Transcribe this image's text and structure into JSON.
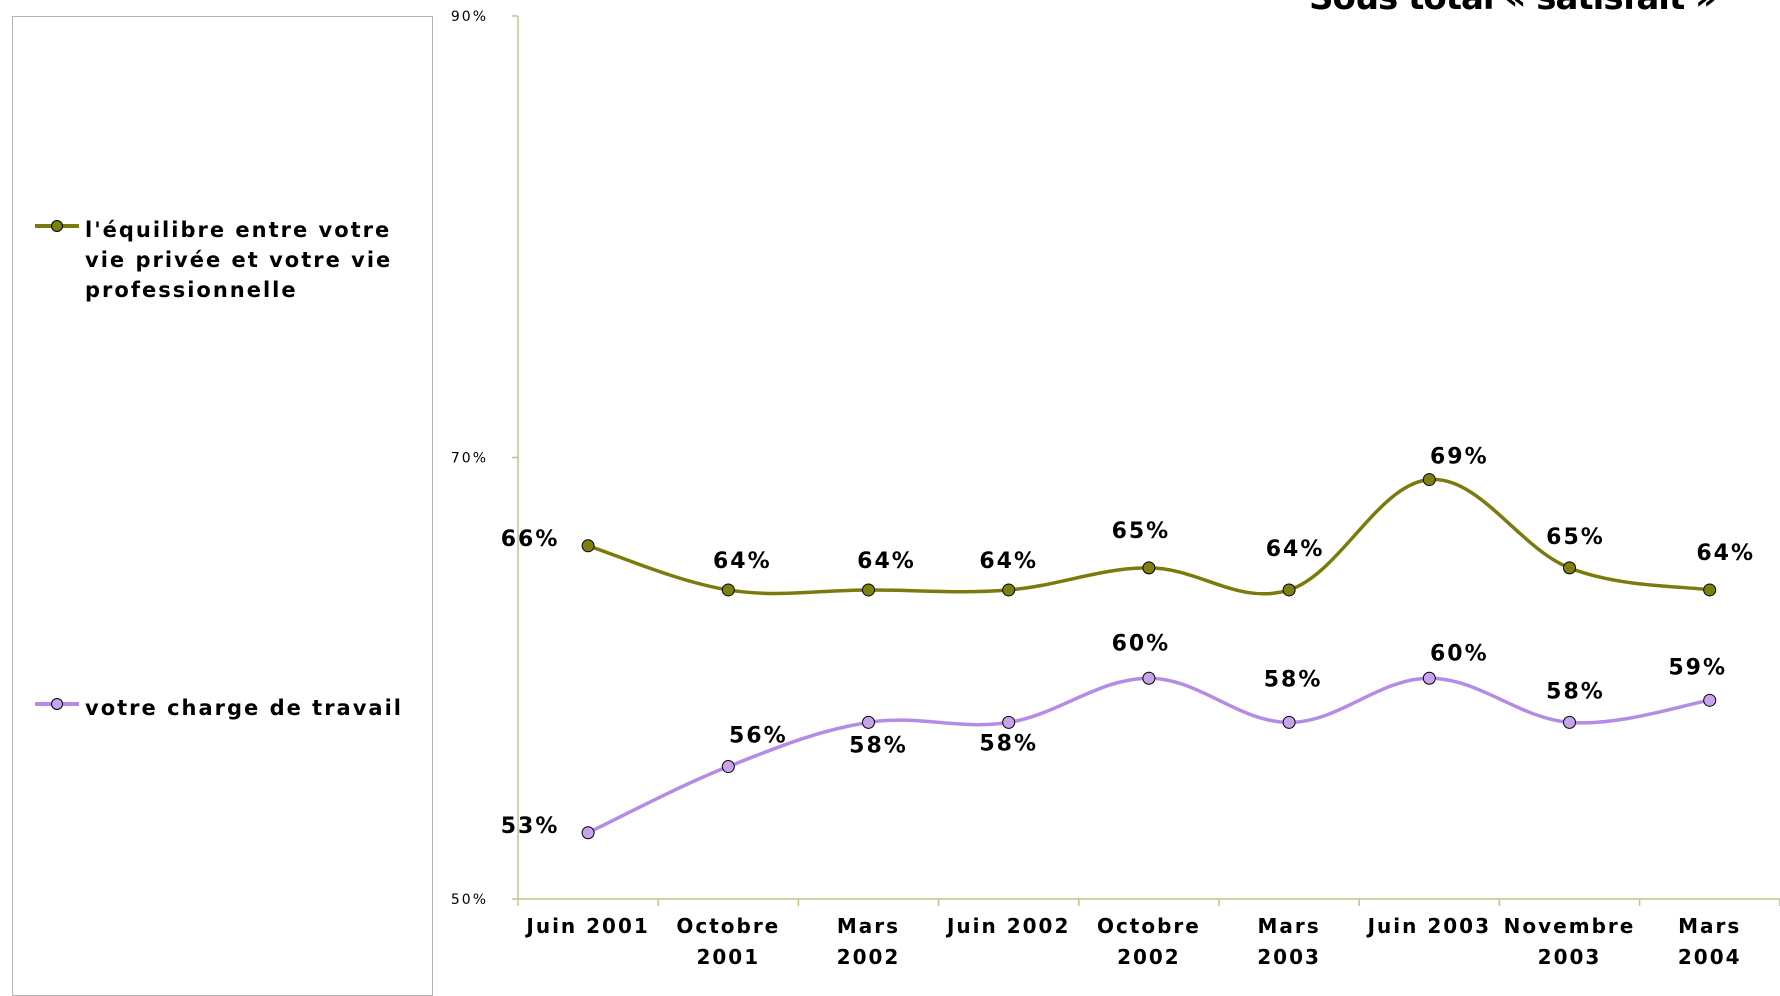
{
  "title": "Sous total « satisfait »",
  "colors": {
    "series1": "#7b7b0c",
    "series1_marker": "#7f7f10",
    "series2": "#b48be6",
    "series2_marker": "#c7a3ee",
    "axis": "#c4c48a"
  },
  "chart_data": {
    "type": "line",
    "title": "Sous total « satisfait »",
    "x": [
      "Juin 2001",
      "Octobre 2001",
      "Mars 2002",
      "Juin 2002",
      "Octobre 2002",
      "Mars 2003",
      "Juin 2003",
      "Novembre 2003",
      "Mars 2004"
    ],
    "x_tick_lines": [
      [
        "Juin 2001"
      ],
      [
        "Octobre",
        "2001"
      ],
      [
        "Mars",
        "2002"
      ],
      [
        "Juin 2002"
      ],
      [
        "Octobre",
        "2002"
      ],
      [
        "Mars",
        "2003"
      ],
      [
        "Juin 2003"
      ],
      [
        "Novembre",
        "2003"
      ],
      [
        "Mars",
        "2004"
      ]
    ],
    "yticks": [
      "50%",
      "70%",
      "90%"
    ],
    "ylim": [
      50,
      90
    ],
    "grid": false,
    "legend_position": "left",
    "series": [
      {
        "name": "l'équilibre entre votre vie privée et votre vie professionnelle",
        "values": [
          66,
          64,
          64,
          64,
          65,
          64,
          69,
          65,
          64
        ],
        "labels": [
          "66%",
          "64%",
          "64%",
          "64%",
          "65%",
          "64%",
          "69%",
          "65%",
          "64%"
        ]
      },
      {
        "name": "votre charge de travail",
        "values": [
          53,
          56,
          58,
          58,
          60,
          58,
          60,
          58,
          59
        ],
        "labels": [
          "53%",
          "56%",
          "58%",
          "58%",
          "60%",
          "58%",
          "60%",
          "58%",
          "59%"
        ]
      }
    ]
  }
}
